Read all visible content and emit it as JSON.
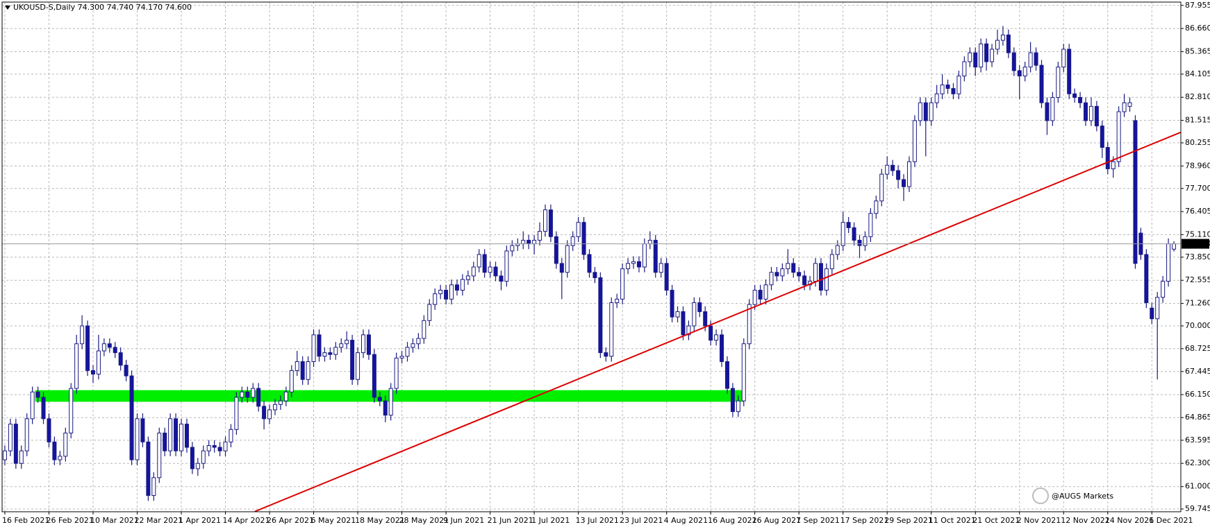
{
  "chart_data": {
    "type": "candlestick",
    "title": "UKOUSD-S,Daily  74.300 74.740 74.170 74.600",
    "watermark": "@AUGS Markets",
    "up_color": "#ffffff",
    "down_color": "#1414a0",
    "line_color": "#1a1a80",
    "grid": true,
    "grid_color": "#b8b8b8",
    "ylim": [
      59.59,
      88.14
    ],
    "yticks": [
      {
        "value": 59.745,
        "label": "59.745"
      },
      {
        "value": 61,
        "label": "61.000"
      },
      {
        "value": 62.3,
        "label": "62.300"
      },
      {
        "value": 63.595,
        "label": "63.595"
      },
      {
        "value": 64.865,
        "label": "64.865"
      },
      {
        "value": 66.15,
        "label": "66.150"
      },
      67.445,
      68.725,
      {
        "value": 70,
        "label": "70.000"
      },
      {
        "value": 71.26,
        "label": "71.260"
      },
      72.555,
      {
        "value": 73.85,
        "label": "73.850"
      },
      {
        "value": 75.11,
        "label": "75.110"
      },
      76.405,
      {
        "value": 77.7,
        "label": "77.700"
      },
      {
        "value": 78.96,
        "label": "78.960"
      },
      80.255,
      81.515,
      {
        "value": 82.81,
        "label": "82.810"
      },
      84.105,
      85.365,
      {
        "value": 86.66,
        "label": "86.660"
      },
      87.955
    ],
    "last": {
      "value": 74.6,
      "label": "74.600"
    },
    "zone": {
      "color": "#00ee00",
      "x": [
        5.5,
        134
      ],
      "y": [
        65.75,
        66.4
      ]
    },
    "trendline": {
      "color": "#dd0000",
      "x": [
        45.3,
        213.2
      ],
      "y": [
        59.6,
        80.84
      ]
    },
    "categories": [
      "16 Feb 2021",
      null,
      null,
      null,
      null,
      null,
      null,
      null,
      "26 Feb 2021",
      null,
      null,
      null,
      null,
      null,
      null,
      null,
      "10 Mar 2021",
      null,
      null,
      null,
      null,
      null,
      null,
      null,
      "22 Mar 2021",
      null,
      null,
      null,
      null,
      null,
      null,
      null,
      "1 Apr 2021",
      null,
      null,
      null,
      null,
      null,
      null,
      null,
      "14 Apr 2021",
      null,
      null,
      null,
      null,
      null,
      null,
      null,
      "26 Apr 2021",
      null,
      null,
      null,
      null,
      null,
      null,
      null,
      "6 May 2021",
      null,
      null,
      null,
      null,
      null,
      null,
      null,
      "18 May 2021",
      null,
      null,
      null,
      null,
      null,
      null,
      null,
      "28 May 2021",
      null,
      null,
      null,
      null,
      null,
      null,
      null,
      "9 Jun 2021",
      null,
      null,
      null,
      null,
      null,
      null,
      null,
      "21 Jun 2021",
      null,
      null,
      null,
      null,
      null,
      null,
      null,
      "1 Jul 2021",
      null,
      null,
      null,
      null,
      null,
      null,
      null,
      "13 Jul 2021",
      null,
      null,
      null,
      null,
      null,
      null,
      null,
      "23 Jul 2021",
      null,
      null,
      null,
      null,
      null,
      null,
      null,
      "4 Aug 2021",
      null,
      null,
      null,
      null,
      null,
      null,
      null,
      "16 Aug 2021",
      null,
      null,
      null,
      null,
      null,
      null,
      null,
      "26 Aug 2021",
      null,
      null,
      null,
      null,
      null,
      null,
      null,
      "7 Sep 2021",
      null,
      null,
      null,
      null,
      null,
      null,
      null,
      "17 Sep 2021",
      null,
      null,
      null,
      null,
      null,
      null,
      null,
      "29 Sep 2021",
      null,
      null,
      null,
      null,
      null,
      null,
      null,
      "11 Oct 2021",
      null,
      null,
      null,
      null,
      null,
      null,
      null,
      "21 Oct 2021",
      null,
      null,
      null,
      null,
      null,
      null,
      null,
      "2 Nov 2021",
      null,
      null,
      null,
      null,
      null,
      null,
      null,
      "12 Nov 2021",
      null,
      null,
      null,
      null,
      null,
      null,
      null,
      "24 Nov 2021",
      null,
      null,
      null,
      null,
      null,
      null,
      null,
      "6 Dec 2021",
      null,
      null,
      null,
      null
    ],
    "ohlc": [
      [
        62.5,
        63.3,
        62.2,
        63.0
      ],
      [
        63.0,
        64.8,
        62.7,
        64.5
      ],
      [
        64.5,
        64.8,
        62.0,
        62.3
      ],
      [
        62.3,
        63.3,
        62.0,
        63.0
      ],
      [
        63.0,
        65.1,
        62.7,
        64.8
      ],
      [
        64.8,
        66.6,
        64.5,
        66.3
      ],
      [
        66.3,
        66.6,
        65.7,
        66.0
      ],
      [
        66.0,
        66.3,
        64.5,
        64.8
      ],
      [
        64.8,
        65.1,
        63.2,
        63.5
      ],
      [
        63.5,
        63.8,
        62.2,
        62.5
      ],
      [
        62.5,
        63.0,
        62.2,
        62.7
      ],
      [
        62.7,
        64.3,
        62.4,
        64.0
      ],
      [
        64.0,
        66.8,
        63.7,
        66.5
      ],
      [
        66.5,
        69.5,
        66.2,
        69.0
      ],
      [
        69.0,
        70.6,
        68.7,
        70.0
      ],
      [
        70.0,
        70.3,
        67.2,
        67.5
      ],
      [
        67.5,
        67.8,
        66.8,
        67.3
      ],
      [
        67.3,
        69.5,
        67.0,
        68.6
      ],
      [
        68.6,
        69.3,
        68.3,
        69.0
      ],
      [
        69.0,
        69.3,
        68.5,
        68.8
      ],
      [
        68.8,
        69.1,
        68.2,
        68.5
      ],
      [
        68.5,
        68.8,
        67.5,
        67.8
      ],
      [
        67.8,
        68.1,
        66.9,
        67.2
      ],
      [
        67.2,
        67.5,
        62.2,
        62.5
      ],
      [
        62.5,
        65.1,
        62.2,
        64.8
      ],
      [
        64.8,
        65.1,
        63.2,
        63.5
      ],
      [
        63.5,
        63.8,
        60.2,
        60.5
      ],
      [
        60.5,
        61.8,
        60.2,
        61.5
      ],
      [
        61.5,
        64.3,
        61.2,
        64.0
      ],
      [
        64.0,
        64.3,
        62.7,
        63.0
      ],
      [
        63.0,
        65.1,
        62.7,
        64.8
      ],
      [
        64.8,
        65.1,
        62.7,
        63.0
      ],
      [
        63.0,
        64.8,
        62.7,
        64.5
      ],
      [
        64.5,
        64.8,
        62.9,
        63.2
      ],
      [
        63.2,
        63.5,
        61.7,
        62.0
      ],
      [
        62.0,
        62.6,
        61.6,
        62.3
      ],
      [
        62.3,
        63.3,
        62.0,
        63.0
      ],
      [
        63.0,
        63.6,
        62.7,
        63.3
      ],
      [
        63.3,
        63.6,
        62.9,
        63.2
      ],
      [
        63.2,
        63.5,
        62.7,
        63.0
      ],
      [
        63.0,
        63.8,
        62.7,
        63.5
      ],
      [
        63.5,
        64.5,
        63.2,
        64.2
      ],
      [
        64.2,
        66.3,
        63.9,
        66.0
      ],
      [
        66.0,
        66.6,
        65.7,
        66.3
      ],
      [
        66.3,
        66.6,
        65.7,
        66.0
      ],
      [
        66.0,
        66.8,
        65.7,
        66.5
      ],
      [
        66.5,
        66.8,
        65.2,
        65.5
      ],
      [
        65.5,
        65.8,
        64.2,
        64.8
      ],
      [
        64.8,
        65.6,
        64.5,
        65.3
      ],
      [
        65.3,
        65.9,
        65.0,
        65.6
      ],
      [
        65.6,
        66.1,
        65.3,
        65.8
      ],
      [
        65.8,
        66.6,
        65.5,
        66.3
      ],
      [
        66.3,
        67.8,
        66.0,
        67.5
      ],
      [
        67.5,
        68.6,
        67.2,
        68.0
      ],
      [
        68.0,
        68.3,
        66.7,
        67.0
      ],
      [
        67.0,
        68.3,
        66.7,
        68.0
      ],
      [
        68.0,
        69.8,
        67.7,
        69.5
      ],
      [
        69.5,
        69.8,
        68.0,
        68.3
      ],
      [
        68.3,
        68.8,
        68.0,
        68.5
      ],
      [
        68.5,
        68.8,
        68.1,
        68.4
      ],
      [
        68.4,
        69.1,
        68.1,
        68.8
      ],
      [
        68.8,
        69.3,
        68.5,
        69.0
      ],
      [
        69.0,
        69.7,
        68.7,
        69.2
      ],
      [
        69.2,
        69.5,
        66.7,
        67.0
      ],
      [
        67.0,
        68.8,
        66.7,
        68.5
      ],
      [
        68.5,
        69.8,
        68.2,
        69.5
      ],
      [
        69.5,
        69.8,
        68.1,
        68.4
      ],
      [
        68.4,
        68.7,
        65.7,
        66.0
      ],
      [
        66.0,
        66.3,
        65.5,
        65.8
      ],
      [
        65.8,
        66.1,
        64.6,
        65.0
      ],
      [
        65.0,
        66.8,
        64.7,
        66.5
      ],
      [
        66.5,
        68.5,
        66.2,
        68.2
      ],
      [
        68.2,
        68.6,
        67.9,
        68.3
      ],
      [
        68.3,
        69.1,
        68.0,
        68.8
      ],
      [
        68.8,
        69.3,
        68.5,
        69.0
      ],
      [
        69.0,
        69.6,
        68.7,
        69.3
      ],
      [
        69.3,
        70.6,
        69.0,
        70.3
      ],
      [
        70.3,
        71.5,
        70.0,
        71.2
      ],
      [
        71.2,
        72.1,
        70.9,
        71.8
      ],
      [
        71.8,
        72.3,
        71.5,
        72.0
      ],
      [
        72.0,
        72.3,
        71.2,
        71.5
      ],
      [
        71.5,
        72.6,
        71.2,
        72.3
      ],
      [
        72.3,
        72.6,
        71.7,
        72.0
      ],
      [
        72.0,
        72.9,
        71.7,
        72.6
      ],
      [
        72.6,
        73.1,
        72.3,
        72.8
      ],
      [
        72.8,
        73.6,
        72.5,
        73.3
      ],
      [
        73.3,
        74.3,
        73.0,
        74.0
      ],
      [
        74.0,
        74.3,
        72.7,
        73.0
      ],
      [
        73.0,
        73.6,
        72.7,
        73.3
      ],
      [
        73.3,
        73.6,
        72.5,
        72.8
      ],
      [
        72.8,
        73.1,
        72.0,
        72.5
      ],
      [
        72.5,
        74.5,
        72.2,
        74.2
      ],
      [
        74.2,
        74.8,
        73.9,
        74.5
      ],
      [
        74.5,
        74.9,
        74.2,
        74.6
      ],
      [
        74.6,
        75.3,
        74.3,
        74.8
      ],
      [
        74.8,
        75.1,
        74.3,
        74.6
      ],
      [
        74.6,
        75.1,
        74.0,
        74.8
      ],
      [
        74.8,
        75.8,
        74.5,
        75.3
      ],
      [
        75.3,
        76.8,
        75.0,
        76.5
      ],
      [
        76.5,
        76.8,
        74.7,
        75.0
      ],
      [
        75.0,
        75.3,
        73.2,
        73.5
      ],
      [
        73.5,
        73.8,
        71.5,
        73.0
      ],
      [
        73.0,
        74.8,
        72.7,
        74.5
      ],
      [
        74.5,
        75.3,
        74.2,
        75.0
      ],
      [
        75.0,
        76.1,
        74.7,
        75.8
      ],
      [
        75.8,
        76.1,
        73.7,
        74.0
      ],
      [
        74.0,
        74.3,
        72.7,
        73.0
      ],
      [
        73.0,
        73.3,
        72.4,
        72.7
      ],
      [
        72.7,
        73.0,
        68.2,
        68.5
      ],
      [
        68.5,
        68.8,
        68.0,
        68.3
      ],
      [
        68.3,
        71.6,
        68.0,
        71.3
      ],
      [
        71.3,
        71.8,
        71.0,
        71.5
      ],
      [
        71.5,
        73.5,
        71.2,
        73.2
      ],
      [
        73.2,
        73.8,
        72.9,
        73.5
      ],
      [
        73.5,
        73.9,
        73.2,
        73.6
      ],
      [
        73.6,
        73.9,
        73.0,
        73.3
      ],
      [
        73.3,
        74.9,
        73.0,
        74.6
      ],
      [
        74.6,
        75.3,
        74.3,
        74.8
      ],
      [
        74.8,
        75.1,
        72.7,
        73.0
      ],
      [
        73.0,
        73.8,
        72.7,
        73.5
      ],
      [
        73.5,
        73.8,
        71.7,
        72.0
      ],
      [
        72.0,
        72.3,
        70.2,
        70.5
      ],
      [
        70.5,
        71.1,
        70.2,
        70.8
      ],
      [
        70.8,
        71.1,
        69.2,
        69.5
      ],
      [
        69.5,
        70.3,
        69.2,
        70.0
      ],
      [
        70.0,
        71.6,
        69.7,
        71.3
      ],
      [
        71.3,
        71.6,
        70.5,
        70.8
      ],
      [
        70.8,
        71.1,
        69.7,
        70.0
      ],
      [
        70.0,
        70.3,
        68.9,
        69.2
      ],
      [
        69.2,
        69.8,
        68.9,
        69.5
      ],
      [
        69.5,
        69.8,
        67.7,
        68.0
      ],
      [
        68.0,
        68.3,
        66.2,
        66.5
      ],
      [
        66.5,
        66.8,
        64.9,
        65.2
      ],
      [
        65.2,
        66.1,
        64.9,
        65.8
      ],
      [
        65.8,
        69.3,
        65.5,
        69.0
      ],
      [
        69.0,
        71.5,
        68.7,
        71.2
      ],
      [
        71.2,
        72.3,
        70.9,
        72.0
      ],
      [
        72.0,
        72.3,
        71.2,
        71.5
      ],
      [
        71.5,
        72.6,
        71.2,
        72.3
      ],
      [
        72.3,
        73.3,
        72.0,
        73.0
      ],
      [
        73.0,
        73.3,
        72.5,
        72.8
      ],
      [
        72.8,
        73.5,
        72.5,
        73.2
      ],
      [
        73.2,
        74.3,
        72.9,
        73.5
      ],
      [
        73.5,
        73.8,
        72.7,
        73.0
      ],
      [
        73.0,
        73.3,
        72.5,
        72.8
      ],
      [
        72.8,
        73.1,
        72.0,
        72.3
      ],
      [
        72.3,
        72.8,
        72.0,
        72.5
      ],
      [
        72.5,
        73.8,
        72.2,
        73.5
      ],
      [
        73.5,
        73.8,
        71.7,
        72.0
      ],
      [
        72.0,
        73.5,
        71.7,
        73.2
      ],
      [
        73.2,
        74.3,
        72.9,
        74.0
      ],
      [
        74.0,
        74.8,
        73.7,
        74.5
      ],
      [
        74.5,
        76.4,
        74.2,
        75.8
      ],
      [
        75.8,
        76.1,
        75.2,
        75.5
      ],
      [
        75.5,
        75.8,
        74.5,
        74.8
      ],
      [
        74.8,
        75.1,
        73.8,
        74.5
      ],
      [
        74.5,
        75.3,
        74.2,
        75.0
      ],
      [
        75.0,
        76.6,
        74.7,
        76.3
      ],
      [
        76.3,
        77.3,
        76.0,
        77.0
      ],
      [
        77.0,
        78.8,
        76.7,
        78.5
      ],
      [
        78.5,
        79.5,
        78.2,
        79.0
      ],
      [
        79.0,
        79.3,
        78.4,
        78.7
      ],
      [
        78.7,
        79.0,
        77.7,
        78.2
      ],
      [
        78.2,
        78.5,
        77.0,
        77.8
      ],
      [
        77.8,
        79.5,
        77.5,
        79.2
      ],
      [
        79.2,
        81.8,
        78.9,
        81.5
      ],
      [
        81.5,
        82.8,
        81.2,
        82.5
      ],
      [
        82.5,
        82.8,
        79.5,
        81.5
      ],
      [
        81.5,
        82.8,
        81.2,
        82.5
      ],
      [
        82.5,
        83.5,
        82.2,
        83.0
      ],
      [
        83.0,
        84.1,
        82.7,
        83.5
      ],
      [
        83.5,
        83.8,
        83.0,
        83.3
      ],
      [
        83.3,
        83.6,
        82.7,
        83.0
      ],
      [
        83.0,
        84.3,
        82.7,
        84.0
      ],
      [
        84.0,
        85.1,
        83.7,
        84.8
      ],
      [
        84.8,
        85.6,
        84.5,
        85.3
      ],
      [
        85.3,
        85.6,
        84.0,
        84.5
      ],
      [
        84.5,
        86.1,
        84.2,
        85.8
      ],
      [
        85.8,
        86.1,
        84.3,
        84.8
      ],
      [
        84.8,
        85.8,
        84.5,
        85.5
      ],
      [
        85.5,
        86.6,
        85.2,
        86.0
      ],
      [
        86.0,
        86.8,
        85.7,
        86.3
      ],
      [
        86.3,
        86.6,
        85.0,
        85.3
      ],
      [
        85.3,
        85.6,
        84.0,
        84.3
      ],
      [
        84.3,
        84.6,
        82.7,
        84.0
      ],
      [
        84.0,
        84.8,
        83.7,
        84.5
      ],
      [
        84.5,
        85.9,
        84.2,
        85.3
      ],
      [
        85.3,
        85.6,
        84.3,
        84.6
      ],
      [
        84.6,
        84.9,
        82.2,
        82.5
      ],
      [
        82.5,
        82.8,
        80.7,
        81.5
      ],
      [
        81.5,
        83.1,
        81.2,
        82.8
      ],
      [
        82.8,
        84.8,
        82.5,
        84.5
      ],
      [
        84.5,
        85.8,
        84.2,
        85.5
      ],
      [
        85.5,
        85.8,
        82.7,
        83.0
      ],
      [
        83.0,
        83.3,
        82.5,
        82.8
      ],
      [
        82.8,
        83.1,
        82.2,
        82.5
      ],
      [
        82.5,
        82.8,
        81.2,
        81.5
      ],
      [
        81.5,
        82.8,
        81.2,
        82.3
      ],
      [
        82.3,
        82.6,
        80.9,
        81.2
      ],
      [
        81.2,
        81.5,
        79.4,
        80.0
      ],
      [
        80.0,
        80.3,
        78.5,
        78.8
      ],
      [
        78.8,
        79.5,
        78.3,
        79.2
      ],
      [
        79.2,
        82.3,
        78.9,
        82.0
      ],
      [
        82.0,
        83.0,
        81.7,
        82.5
      ],
      [
        82.3,
        82.8,
        82.0,
        82.5
      ],
      [
        81.5,
        81.8,
        73.2,
        73.5
      ],
      [
        75.2,
        75.5,
        73.7,
        74.0
      ],
      [
        74.0,
        74.3,
        71.0,
        71.3
      ],
      [
        71.0,
        71.3,
        70.1,
        70.4
      ],
      [
        70.4,
        71.9,
        67.0,
        71.6
      ],
      [
        71.6,
        72.8,
        71.3,
        72.5
      ],
      [
        72.5,
        74.9,
        72.2,
        74.6
      ],
      [
        74.3,
        74.74,
        74.17,
        74.6
      ]
    ]
  }
}
